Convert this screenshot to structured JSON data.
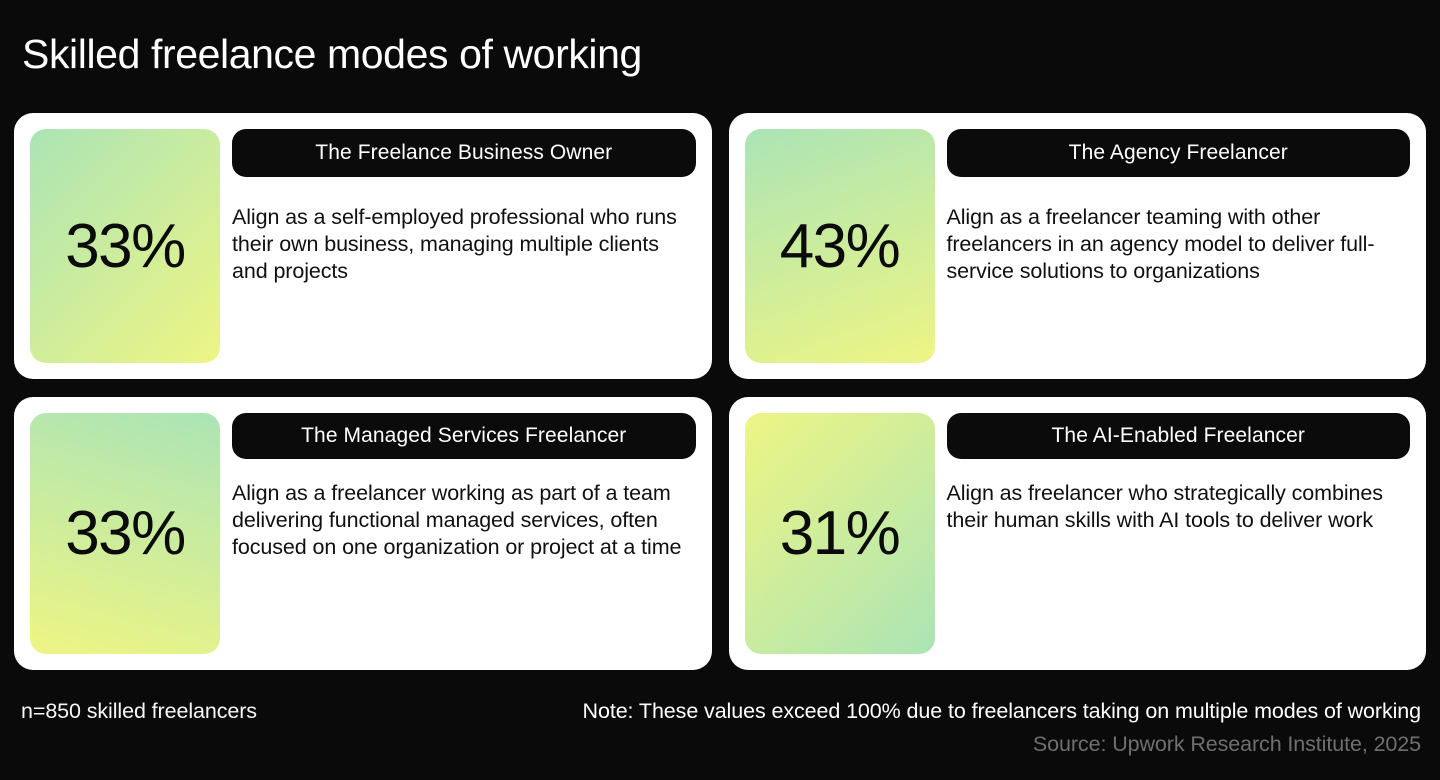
{
  "title": "Skilled freelance modes of working",
  "colors": {
    "background": "#0a0a0a",
    "card_bg": "#ffffff",
    "pill_bg": "#0b0b0b",
    "pill_text": "#ffffff",
    "gradient_green": "#abe4b6",
    "gradient_yellow": "#eef584",
    "body_text": "#101010",
    "footer_text": "#ffffff",
    "source_text": "#6f6f6f"
  },
  "cards": [
    {
      "id": "freelance-business-owner",
      "percent": "33%",
      "title": "The Freelance Business Owner",
      "description": "Align as a self-employed professional who runs their own business, managing multiple clients and projects",
      "gradient_direction": "135deg"
    },
    {
      "id": "agency-freelancer",
      "percent": "43%",
      "title": "The Agency Freelancer",
      "description": "Align as a freelancer teaming with other freelancers in an agency model to deliver full-service solutions to organizations",
      "gradient_direction": "160deg"
    },
    {
      "id": "managed-services-freelancer",
      "percent": "33%",
      "title": "The Managed Services Freelancer",
      "description": "Align as a freelancer working as part of a team delivering functional managed services, often focused on one organization or project at a time",
      "gradient_direction": "195deg"
    },
    {
      "id": "ai-enabled-freelancer",
      "percent": "31%",
      "title": "The AI-Enabled Freelancer",
      "description": "Align as freelancer who strategically combines their human skills with AI tools to deliver work",
      "gradient_direction": "315deg"
    }
  ],
  "footer": {
    "sample": "n=850 skilled freelancers",
    "note": "Note: These values exceed 100% due to freelancers taking on multiple modes of working",
    "source": "Source: Upwork Research Institute, 2025"
  },
  "chart_data": {
    "type": "table",
    "title": "Skilled freelance modes of working",
    "categories": [
      "The Freelance Business Owner",
      "The Agency Freelancer",
      "The Managed Services Freelancer",
      "The AI-Enabled Freelancer"
    ],
    "values": [
      33,
      43,
      33,
      31
    ],
    "unit": "%",
    "sample_size": "n=850 skilled freelancers",
    "note": "Note: These values exceed 100% due to freelancers taking on multiple modes of working",
    "source": "Source: Upwork Research Institute, 2025"
  }
}
